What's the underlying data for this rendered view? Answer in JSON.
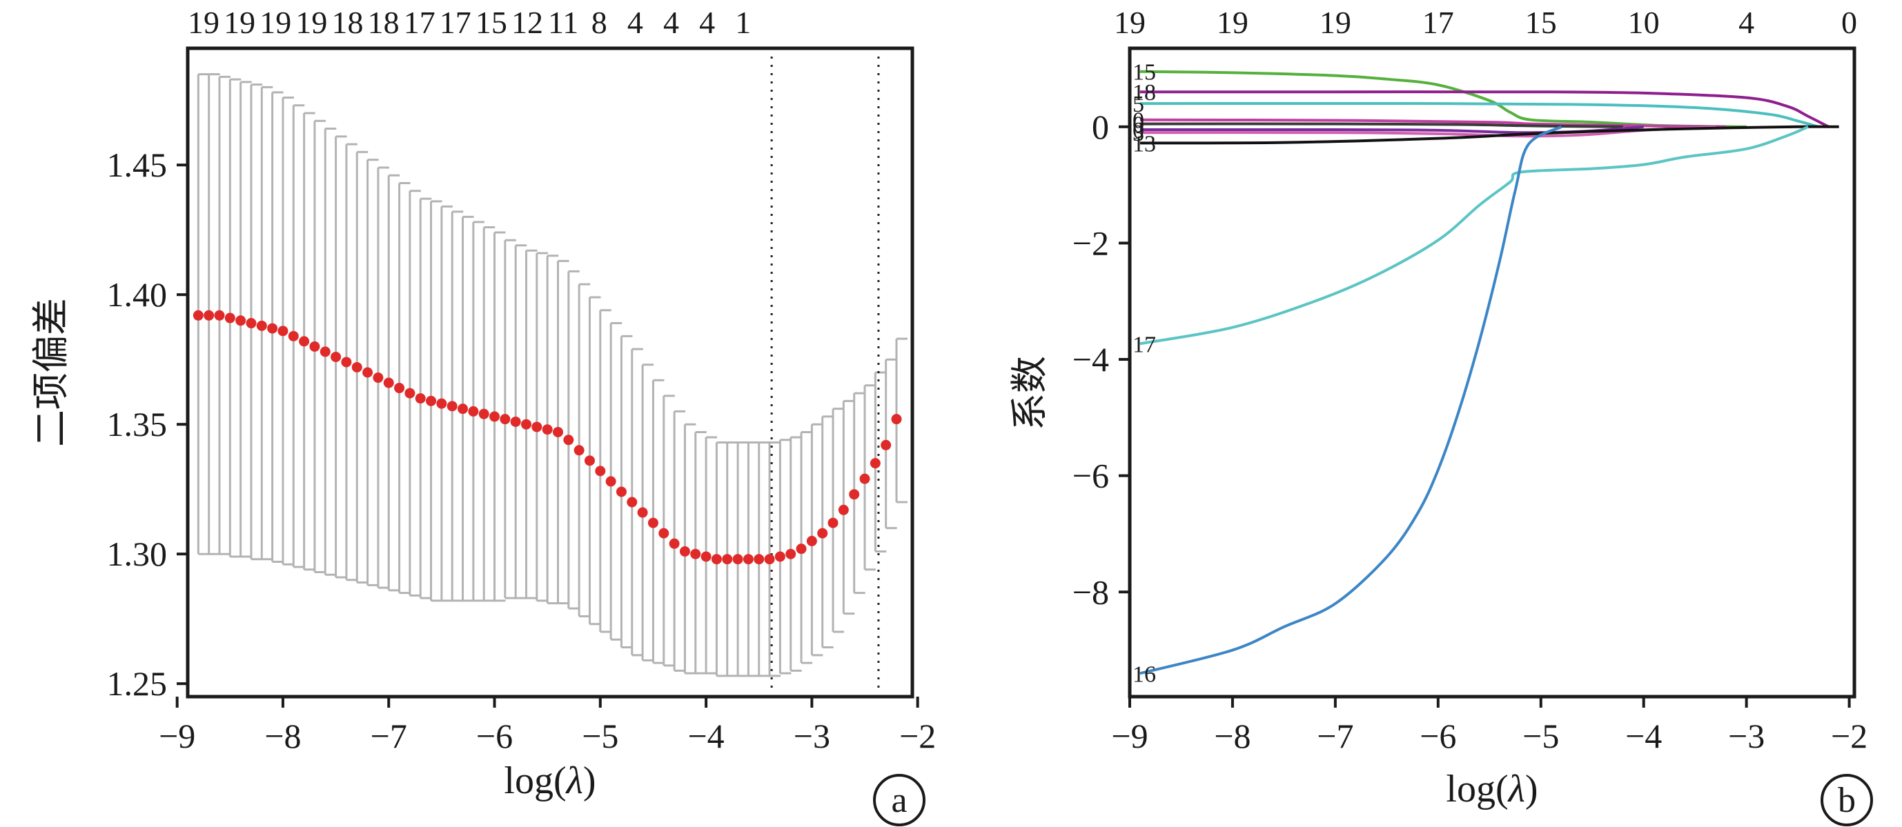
{
  "chart_data": [
    {
      "type": "scatter",
      "panel_label": "a",
      "title": "",
      "xlabel": "log(λ)",
      "ylabel": "二项偏差",
      "xlim": [
        -8.9,
        -2.05
      ],
      "ylim": [
        1.245,
        1.495
      ],
      "xticks": [
        "−9",
        "−8",
        "−7",
        "−6",
        "−5",
        "−4",
        "−3",
        "−2"
      ],
      "yticks": [
        "1.25",
        "1.30",
        "1.35",
        "1.40",
        "1.45"
      ],
      "top_ticks": [
        "19",
        "19",
        "19",
        "19",
        "18",
        "18",
        "17",
        "17",
        "15",
        "12",
        "11",
        "8",
        "4",
        "4",
        "4",
        "1"
      ],
      "top_ticks_x": [
        -8.75,
        -8.41,
        -8.07,
        -7.73,
        -7.39,
        -7.05,
        -6.71,
        -6.37,
        -6.03,
        -5.69,
        -5.35,
        -5.01,
        -4.67,
        -4.33,
        -3.99,
        -3.65
      ],
      "vlines": [
        -3.38,
        -2.37
      ],
      "grid": false,
      "points": {
        "x": [
          -8.8,
          -8.7,
          -8.6,
          -8.5,
          -8.4,
          -8.3,
          -8.2,
          -8.1,
          -8.0,
          -7.9,
          -7.8,
          -7.7,
          -7.6,
          -7.5,
          -7.4,
          -7.3,
          -7.2,
          -7.1,
          -7.0,
          -6.9,
          -6.8,
          -6.7,
          -6.6,
          -6.5,
          -6.4,
          -6.3,
          -6.2,
          -6.1,
          -6.0,
          -5.9,
          -5.8,
          -5.7,
          -5.6,
          -5.5,
          -5.4,
          -5.3,
          -5.2,
          -5.1,
          -5.0,
          -4.9,
          -4.8,
          -4.7,
          -4.6,
          -4.5,
          -4.4,
          -4.3,
          -4.2,
          -4.1,
          -4.0,
          -3.9,
          -3.8,
          -3.7,
          -3.6,
          -3.5,
          -3.4,
          -3.3,
          -3.2,
          -3.1,
          -3.0,
          -2.9,
          -2.8,
          -2.7,
          -2.6,
          -2.5,
          -2.4,
          -2.3,
          -2.2
        ],
        "y": [
          1.392,
          1.392,
          1.392,
          1.391,
          1.39,
          1.389,
          1.388,
          1.387,
          1.386,
          1.384,
          1.382,
          1.38,
          1.378,
          1.376,
          1.374,
          1.372,
          1.37,
          1.368,
          1.366,
          1.364,
          1.362,
          1.36,
          1.359,
          1.358,
          1.357,
          1.356,
          1.355,
          1.354,
          1.353,
          1.352,
          1.351,
          1.35,
          1.349,
          1.348,
          1.347,
          1.344,
          1.34,
          1.336,
          1.332,
          1.328,
          1.324,
          1.32,
          1.316,
          1.312,
          1.308,
          1.304,
          1.301,
          1.3,
          1.299,
          1.298,
          1.298,
          1.298,
          1.298,
          1.298,
          1.298,
          1.299,
          1.3,
          1.302,
          1.305,
          1.308,
          1.312,
          1.317,
          1.323,
          1.329,
          1.335,
          1.342,
          1.352
        ],
        "err_low": [
          1.3,
          1.3,
          1.3,
          1.299,
          1.299,
          1.298,
          1.298,
          1.297,
          1.296,
          1.295,
          1.294,
          1.293,
          1.292,
          1.291,
          1.29,
          1.289,
          1.288,
          1.287,
          1.286,
          1.285,
          1.284,
          1.283,
          1.282,
          1.282,
          1.282,
          1.282,
          1.282,
          1.282,
          1.282,
          1.283,
          1.283,
          1.283,
          1.282,
          1.281,
          1.281,
          1.279,
          1.276,
          1.273,
          1.27,
          1.267,
          1.264,
          1.261,
          1.259,
          1.258,
          1.257,
          1.255,
          1.254,
          1.254,
          1.254,
          1.253,
          1.253,
          1.253,
          1.253,
          1.253,
          1.253,
          1.254,
          1.255,
          1.258,
          1.261,
          1.264,
          1.27,
          1.277,
          1.285,
          1.294,
          1.301,
          1.31,
          1.32
        ],
        "err_high": [
          1.485,
          1.485,
          1.484,
          1.483,
          1.482,
          1.481,
          1.48,
          1.478,
          1.476,
          1.473,
          1.47,
          1.467,
          1.464,
          1.461,
          1.458,
          1.455,
          1.452,
          1.449,
          1.446,
          1.443,
          1.44,
          1.437,
          1.436,
          1.434,
          1.432,
          1.43,
          1.428,
          1.426,
          1.424,
          1.421,
          1.419,
          1.417,
          1.416,
          1.415,
          1.413,
          1.409,
          1.404,
          1.399,
          1.394,
          1.389,
          1.384,
          1.379,
          1.373,
          1.367,
          1.361,
          1.355,
          1.35,
          1.347,
          1.345,
          1.343,
          1.343,
          1.343,
          1.343,
          1.343,
          1.343,
          1.344,
          1.345,
          1.347,
          1.35,
          1.353,
          1.356,
          1.359,
          1.362,
          1.365,
          1.37,
          1.375,
          1.383
        ]
      }
    },
    {
      "type": "line",
      "panel_label": "b",
      "title": "",
      "xlabel": "log(λ)",
      "ylabel": "系数",
      "xlim": [
        -9.0,
        -1.95
      ],
      "ylim": [
        -9.8,
        1.35
      ],
      "xticks": [
        "−9",
        "−8",
        "−7",
        "−6",
        "−5",
        "−4",
        "−3",
        "−2"
      ],
      "yticks": [
        "0",
        "−2",
        "−4",
        "−6",
        "−8"
      ],
      "top_ticks": [
        "19",
        "19",
        "19",
        "17",
        "15",
        "10",
        "4",
        "0"
      ],
      "top_ticks_x": [
        -9,
        -8,
        -7,
        -6,
        -5,
        -4,
        -3,
        -2
      ],
      "grid": false,
      "series_labels": [
        "15",
        "18",
        "5",
        "0",
        "0",
        "0",
        "3",
        "13",
        "17",
        "16"
      ],
      "series": [
        {
          "color": "#55b03d",
          "x": [
            -8.9,
            -8.0,
            -7.0,
            -6.5,
            -6.0,
            -5.5,
            -5.3,
            -5.1,
            -4.5,
            -3.8,
            -3.0
          ],
          "y": [
            0.95,
            0.93,
            0.88,
            0.82,
            0.72,
            0.45,
            0.25,
            0.12,
            0.08,
            0.02,
            0.0
          ]
        },
        {
          "color": "#8e1f8e",
          "x": [
            -8.9,
            -7.0,
            -5.0,
            -4.0,
            -3.0,
            -2.6,
            -2.4,
            -2.2
          ],
          "y": [
            0.6,
            0.6,
            0.6,
            0.58,
            0.5,
            0.35,
            0.18,
            0.0
          ]
        },
        {
          "color": "#4bbfbf",
          "x": [
            -8.9,
            -6.0,
            -4.5,
            -3.5,
            -2.8,
            -2.5,
            -2.3
          ],
          "y": [
            0.4,
            0.4,
            0.38,
            0.33,
            0.22,
            0.1,
            0.0
          ]
        },
        {
          "color": "#c040a0",
          "x": [
            -8.9,
            -7.0,
            -5.5,
            -5.1,
            -4.5,
            -3.8,
            -3.2
          ],
          "y": [
            0.12,
            0.11,
            0.08,
            0.05,
            0.03,
            0.01,
            0.0
          ]
        },
        {
          "color": "#3a3a3a",
          "x": [
            -8.9,
            -7.0,
            -5.8,
            -5.2,
            -4.8,
            -4.2
          ],
          "y": [
            0.05,
            0.05,
            0.04,
            0.02,
            0.01,
            0.0
          ]
        },
        {
          "color": "#7a2a9a",
          "x": [
            -8.9,
            -7.0,
            -6.0,
            -5.2,
            -4.6,
            -4.0
          ],
          "y": [
            -0.05,
            -0.05,
            -0.06,
            -0.1,
            -0.08,
            0.0
          ]
        },
        {
          "color": "#d060b0",
          "x": [
            -8.9,
            -7.0,
            -6.0,
            -5.2,
            -4.6,
            -4.0,
            -3.3
          ],
          "y": [
            -0.1,
            -0.1,
            -0.12,
            -0.16,
            -0.14,
            -0.06,
            0.0
          ]
        },
        {
          "color": "#111111",
          "x": [
            -8.9,
            -7.5,
            -6.0,
            -5.2,
            -4.5,
            -3.5,
            -2.5,
            -2.1
          ],
          "y": [
            -0.28,
            -0.27,
            -0.2,
            -0.13,
            -0.08,
            -0.03,
            0.0,
            0.0
          ]
        },
        {
          "color": "#5cc4c4",
          "x": [
            -8.9,
            -8.0,
            -7.2,
            -6.6,
            -6.0,
            -5.6,
            -5.3,
            -5.2,
            -4.5,
            -4.0,
            -3.6,
            -3.0,
            -2.6,
            -2.4
          ],
          "y": [
            -3.73,
            -3.45,
            -3.0,
            -2.55,
            -1.95,
            -1.35,
            -0.95,
            -0.78,
            -0.72,
            -0.65,
            -0.52,
            -0.38,
            -0.15,
            0.0
          ]
        },
        {
          "color": "#3d86c6",
          "x": [
            -8.9,
            -8.0,
            -7.5,
            -7.0,
            -6.5,
            -6.2,
            -6.0,
            -5.8,
            -5.6,
            -5.4,
            -5.25,
            -5.12,
            -4.8
          ],
          "y": [
            -9.4,
            -9.0,
            -8.6,
            -8.2,
            -7.4,
            -6.65,
            -5.9,
            -4.9,
            -3.7,
            -2.3,
            -1.1,
            -0.3,
            0.0
          ]
        }
      ]
    }
  ]
}
